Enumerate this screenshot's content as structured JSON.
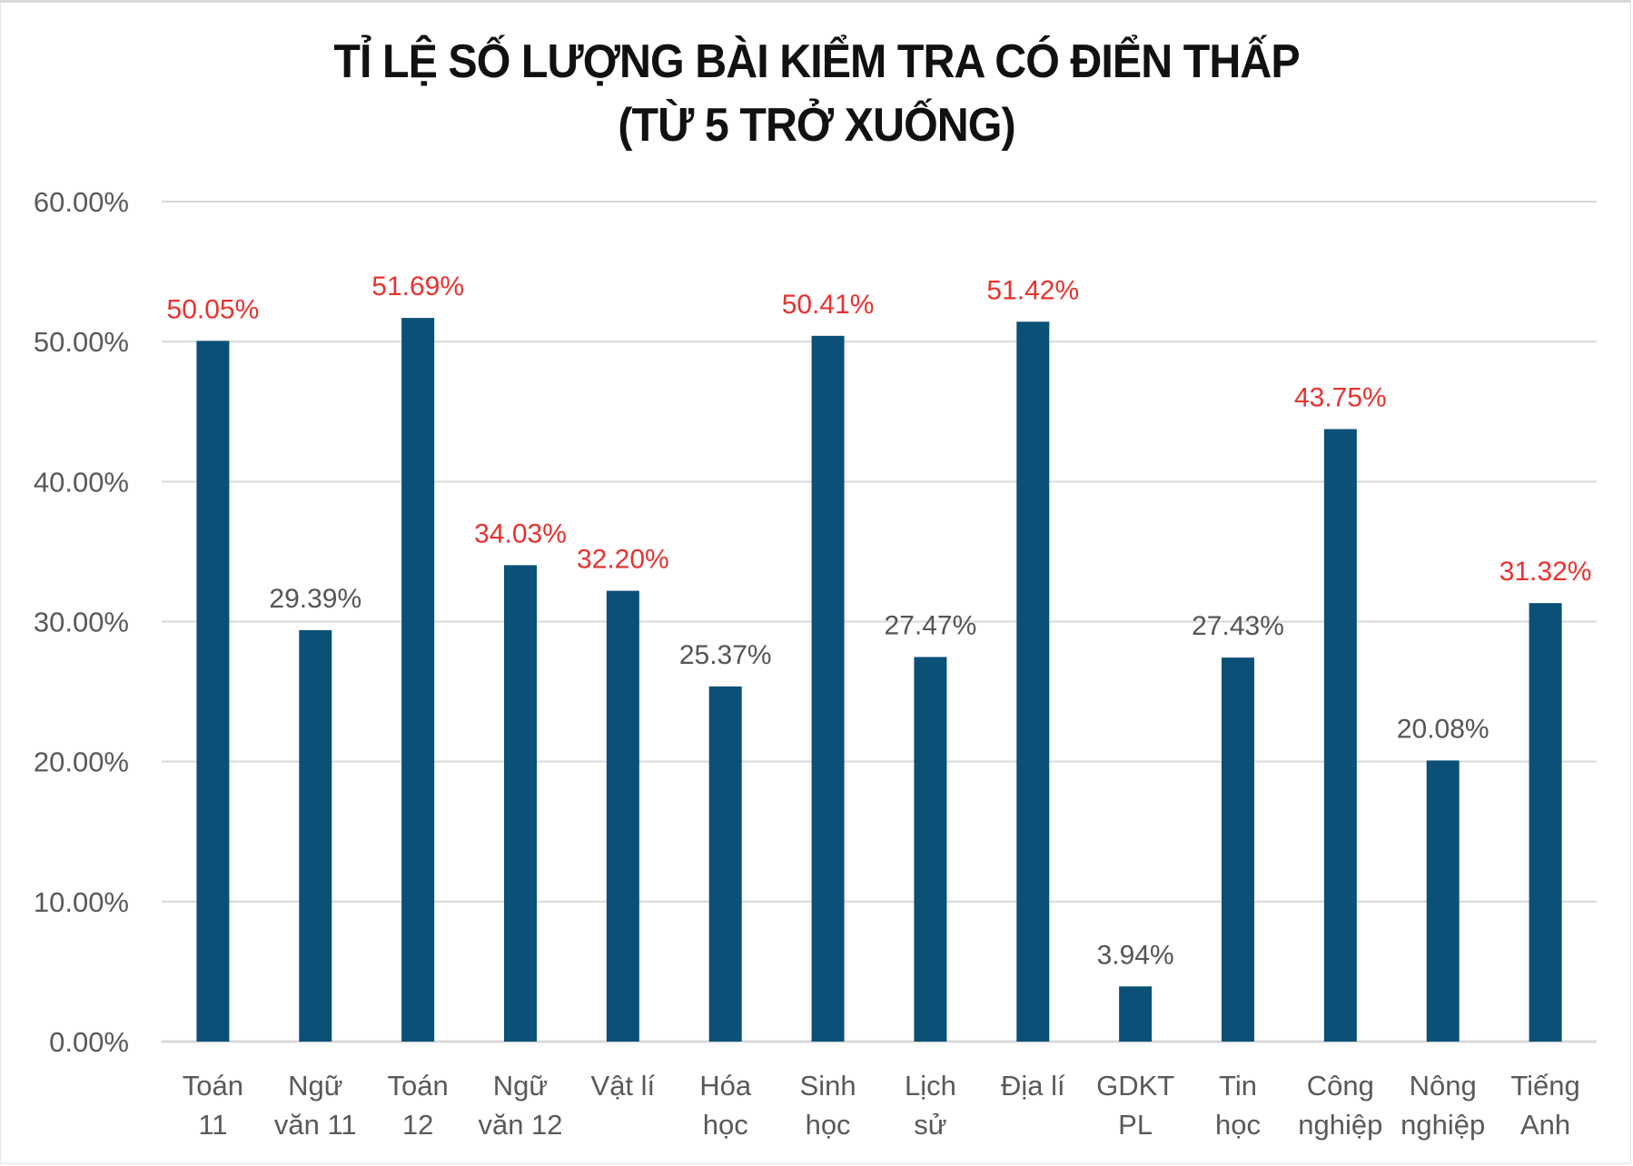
{
  "chart_data": {
    "type": "bar",
    "title": [
      "TỈ LỆ SỐ LƯỢNG BÀI KIỂM TRA CÓ ĐIỂN THẤP",
      "(TỪ 5 TRỞ XUỐNG)"
    ],
    "categories": [
      [
        "Toán",
        "11"
      ],
      [
        "Ngữ",
        "văn 11"
      ],
      [
        "Toán",
        "12"
      ],
      [
        "Ngữ",
        "văn 12"
      ],
      [
        "Vật lí"
      ],
      [
        "Hóa",
        "học"
      ],
      [
        "Sinh",
        "học"
      ],
      [
        "Lịch",
        "sử"
      ],
      [
        "Địa lí"
      ],
      [
        "GDKT",
        "PL"
      ],
      [
        "Tin",
        "học"
      ],
      [
        "Công",
        "nghiệp"
      ],
      [
        "Nông",
        "nghiệp"
      ],
      [
        "Tiếng",
        "Anh"
      ]
    ],
    "values": [
      50.05,
      29.39,
      51.69,
      34.03,
      32.2,
      25.37,
      50.41,
      27.47,
      51.42,
      3.94,
      27.43,
      43.75,
      20.08,
      31.32
    ],
    "data_labels": [
      "50.05%",
      "29.39%",
      "51.69%",
      "34.03%",
      "32.20%",
      "25.37%",
      "50.41%",
      "27.47%",
      "51.42%",
      "3.94%",
      "27.43%",
      "43.75%",
      "20.08%",
      "31.32%"
    ],
    "highlighted": [
      true,
      false,
      true,
      true,
      true,
      false,
      true,
      false,
      true,
      false,
      false,
      true,
      false,
      true
    ],
    "yticks": [
      "0.00%",
      "10.00%",
      "20.00%",
      "30.00%",
      "40.00%",
      "50.00%",
      "60.00%"
    ],
    "ylim": [
      0,
      60
    ],
    "grid": true,
    "legend": "none",
    "colors": {
      "bar": "#0b5077",
      "label_highlight": "#e8322f",
      "label_normal": "#555555",
      "grid": "#d9d9d9"
    }
  }
}
